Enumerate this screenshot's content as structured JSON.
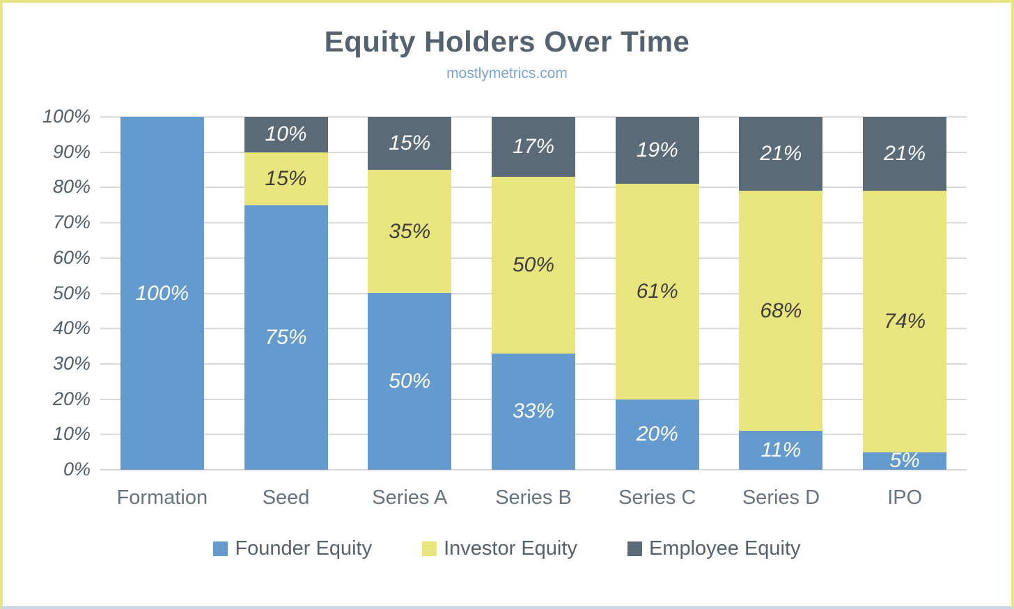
{
  "chart_data": {
    "type": "bar",
    "stacked": true,
    "orientation": "vertical",
    "title": "Equity Holders Over Time",
    "subtitle": "mostlymetrics.com",
    "categories": [
      "Formation",
      "Seed",
      "Series A",
      "Series B",
      "Series C",
      "Series D",
      "IPO"
    ],
    "series": [
      {
        "name": "Founder Equity",
        "color": "#649acd",
        "label_color": "#ffffff",
        "values": [
          100,
          75,
          50,
          33,
          20,
          11,
          5
        ]
      },
      {
        "name": "Investor Equity",
        "color": "#e9e57e",
        "label_color": "#3d3d3d",
        "values": [
          0,
          15,
          35,
          50,
          61,
          68,
          74
        ]
      },
      {
        "name": "Employee Equity",
        "color": "#5a6a76",
        "label_color": "#ffffff",
        "values": [
          0,
          10,
          15,
          17,
          19,
          21,
          21
        ]
      }
    ],
    "ylim": [
      0,
      100
    ],
    "yticks": [
      "0%",
      "10%",
      "20%",
      "30%",
      "40%",
      "50%",
      "60%",
      "70%",
      "80%",
      "90%",
      "100%"
    ],
    "grid": true,
    "legend_position": "bottom",
    "data_label_format": "percent",
    "data_label_style": "italic"
  },
  "palette": {
    "title_color": "#556270",
    "subtitle_color": "#7ba3d9",
    "axis_label_color": "#515e68",
    "x_label_color": "#66737e",
    "legend_text_color": "#54616c",
    "gridline_color": "#d9d9d9",
    "frame_border_color": "#e9e583",
    "frame_bottom_border_color": "#c9d7e8",
    "background_color": "#ffffff"
  }
}
